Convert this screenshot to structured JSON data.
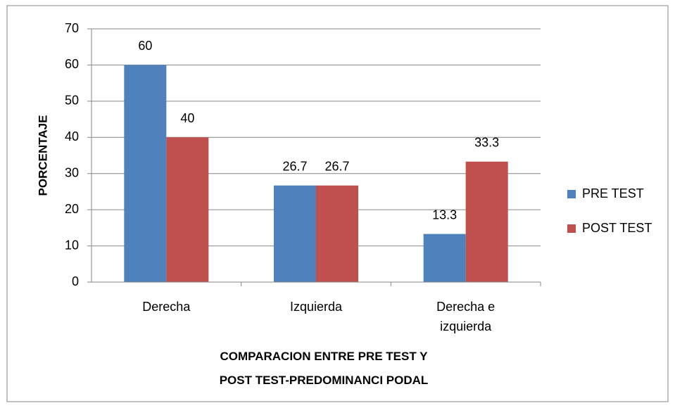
{
  "chart_data": {
    "type": "bar",
    "x_label": "COMPARACION ENTRE PRE TEST Y POST TEST-PREDOMINANCI PODAL",
    "y_label": "PORCENTAJE",
    "categories": [
      "Derecha",
      "Izquierda",
      "Derecha e izquierda"
    ],
    "series": [
      {
        "name": "PRE TEST",
        "color": "#4f81bd",
        "values": [
          60,
          26.7,
          13.3
        ]
      },
      {
        "name": "POST TEST",
        "color": "#c0504d",
        "values": [
          40,
          26.7,
          33.3
        ]
      }
    ],
    "ylim": [
      0,
      70
    ],
    "yticks": [
      0,
      10,
      20,
      30,
      40,
      50,
      60,
      70
    ],
    "grid": true,
    "legend": "right"
  }
}
